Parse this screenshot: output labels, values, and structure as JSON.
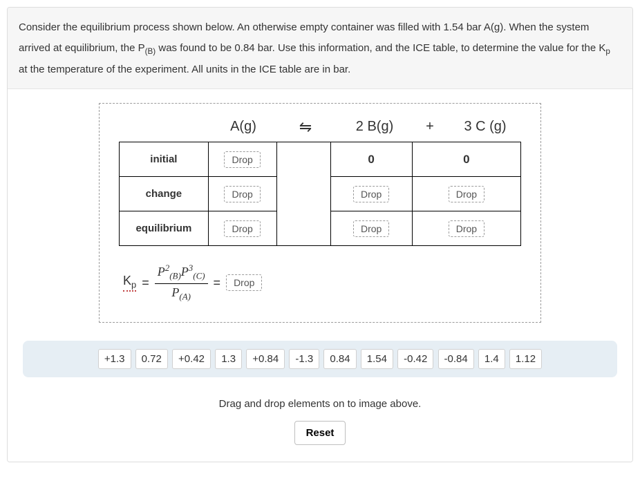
{
  "prompt": {
    "text_parts": {
      "p1": "Consider the equilibrium process shown below. An otherwise empty container was filled with 1.54 bar A(g). When the system arrived at equilibrium, the P",
      "p1_sub": "(B)",
      "p2": " was found to be 0.84 bar. Use this information, and the ICE table, to determine the value for the K",
      "p2_sub": "p",
      "p3": " at the temperature of the experiment. All units in the ICE table are in bar."
    }
  },
  "reaction": {
    "species_A": "A(g)",
    "arrow": "⇋",
    "species_B": "2 B(g)",
    "plus": "+",
    "species_C": "3 C (g)"
  },
  "ice": {
    "row_labels": {
      "initial": "initial",
      "change": "change",
      "equilibrium": "equilibrium"
    },
    "drop_label": "Drop",
    "zero": "0"
  },
  "kp": {
    "label_K": "K",
    "label_sub": "p",
    "equals": "=",
    "num_html_parts": {
      "P": "P",
      "B": "(B)",
      "two": "2",
      "C": "(C)",
      "three": "3"
    },
    "den_html_parts": {
      "P": "P",
      "A": "(A)"
    },
    "drop_label": "Drop"
  },
  "chips": [
    "+1.3",
    "0.72",
    "+0.42",
    "1.3",
    "+0.84",
    "-1.3",
    "0.84",
    "1.54",
    "-0.42",
    "-0.84",
    "1.4",
    "1.12"
  ],
  "hint": "Drag and drop elements on to image above.",
  "reset_label": "Reset",
  "colors": {
    "prompt_bg": "#f6f6f6",
    "chipbar_bg": "#e6eef4",
    "dashed_border": "#9a9a9a",
    "kp_underline": "#c04040"
  }
}
